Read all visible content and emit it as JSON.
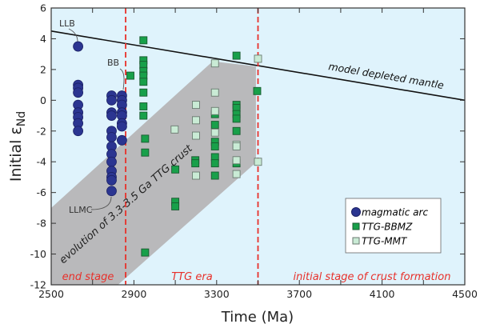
{
  "chart_data": {
    "type": "scatter",
    "xlabel": "Time (Ma)",
    "ylabel": {
      "main": "Initial ε",
      "sub": "Nd"
    },
    "xlim": [
      2500,
      4500
    ],
    "ylim": [
      -12,
      6
    ],
    "xticks": [
      2500,
      2900,
      3300,
      3700,
      4100,
      4500
    ],
    "yticks": [
      6,
      4,
      2,
      0,
      -2,
      -4,
      -6,
      -8,
      -10,
      -12
    ],
    "grid": false,
    "legend_position": "bottom-right",
    "colors": {
      "background": "#dff3fc",
      "band": "#b9b9bb",
      "stage_lines": "#e8302a",
      "magmatic_arc": "#2b3591",
      "ttg_bbmz": "#18a04a",
      "ttg_mmt": "#c9ebd5"
    },
    "reference_line": {
      "label": "model depleted mantle",
      "points": [
        [
          2500,
          4.5
        ],
        [
          4500,
          0
        ]
      ]
    },
    "band": {
      "label": "evolution of 3.3-3.5 Ga TTG crust",
      "polygon": [
        [
          2500,
          -7
        ],
        [
          3270,
          2.4
        ],
        [
          3300,
          2.5
        ],
        [
          3490,
          2.2
        ],
        [
          3490,
          -4.05
        ],
        [
          2823,
          -12
        ],
        [
          2500,
          -12
        ]
      ]
    },
    "stage_boundaries": [
      2860,
      3500
    ],
    "stage_labels": [
      "end stage",
      "TTG era",
      "initial stage of crust formation"
    ],
    "annotations": [
      "LLB",
      "BB",
      "LLMC"
    ],
    "series": [
      {
        "name": "magmatic arc",
        "marker": "circle",
        "points": [
          [
            2630,
            3.5
          ],
          [
            2630,
            1.0
          ],
          [
            2630,
            0.8
          ],
          [
            2630,
            0.5
          ],
          [
            2630,
            -0.3
          ],
          [
            2630,
            -0.8
          ],
          [
            2630,
            -1.1
          ],
          [
            2630,
            -1.5
          ],
          [
            2630,
            -2.0
          ],
          [
            2792,
            0.3
          ],
          [
            2792,
            0.0
          ],
          [
            2792,
            -0.8
          ],
          [
            2792,
            -1.0
          ],
          [
            2792,
            -2.0
          ],
          [
            2792,
            -2.4
          ],
          [
            2792,
            -3.0
          ],
          [
            2792,
            -3.5
          ],
          [
            2792,
            -4.0
          ],
          [
            2792,
            -4.6
          ],
          [
            2792,
            -5.0
          ],
          [
            2792,
            -5.2
          ],
          [
            2792,
            -5.9
          ],
          [
            2842,
            0.3
          ],
          [
            2842,
            0.0
          ],
          [
            2842,
            -0.3
          ],
          [
            2842,
            -0.8
          ],
          [
            2842,
            -1.0
          ],
          [
            2842,
            -1.5
          ],
          [
            2842,
            -1.7
          ],
          [
            2842,
            -2.6
          ]
        ]
      },
      {
        "name": "TTG-BBMZ",
        "marker": "square",
        "points": [
          [
            2883,
            1.6
          ],
          [
            2946,
            3.9
          ],
          [
            2946,
            2.6
          ],
          [
            2946,
            2.3
          ],
          [
            2946,
            1.9
          ],
          [
            2946,
            1.6
          ],
          [
            2946,
            1.2
          ],
          [
            2946,
            0.5
          ],
          [
            2946,
            -0.4
          ],
          [
            2946,
            -1.0
          ],
          [
            2954,
            -2.5
          ],
          [
            2954,
            -3.4
          ],
          [
            2954,
            -9.9
          ],
          [
            3100,
            -4.5
          ],
          [
            3100,
            -6.6
          ],
          [
            3100,
            -6.9
          ],
          [
            3197,
            -3.9
          ],
          [
            3197,
            -4.1
          ],
          [
            3292,
            -0.9
          ],
          [
            3292,
            -1.6
          ],
          [
            3292,
            -2.7
          ],
          [
            3292,
            -3.0
          ],
          [
            3292,
            -3.7
          ],
          [
            3292,
            -4.1
          ],
          [
            3292,
            -4.9
          ],
          [
            3396,
            2.9
          ],
          [
            3396,
            -0.3
          ],
          [
            3396,
            -0.5
          ],
          [
            3396,
            -0.9
          ],
          [
            3396,
            -1.2
          ],
          [
            3396,
            -2.0
          ],
          [
            3396,
            -4.1
          ],
          [
            3496,
            0.6
          ]
        ]
      },
      {
        "name": "TTG-MMT",
        "marker": "square",
        "points": [
          [
            3097,
            -1.9
          ],
          [
            3200,
            -0.3
          ],
          [
            3200,
            -1.3
          ],
          [
            3200,
            -2.3
          ],
          [
            3200,
            -4.9
          ],
          [
            3292,
            2.4
          ],
          [
            3292,
            0.5
          ],
          [
            3292,
            -0.7
          ],
          [
            3292,
            -2.1
          ],
          [
            3396,
            -2.9
          ],
          [
            3396,
            -3.0
          ],
          [
            3396,
            -3.9
          ],
          [
            3396,
            -4.8
          ],
          [
            3500,
            2.7
          ],
          [
            3500,
            -4.0
          ]
        ]
      }
    ]
  }
}
